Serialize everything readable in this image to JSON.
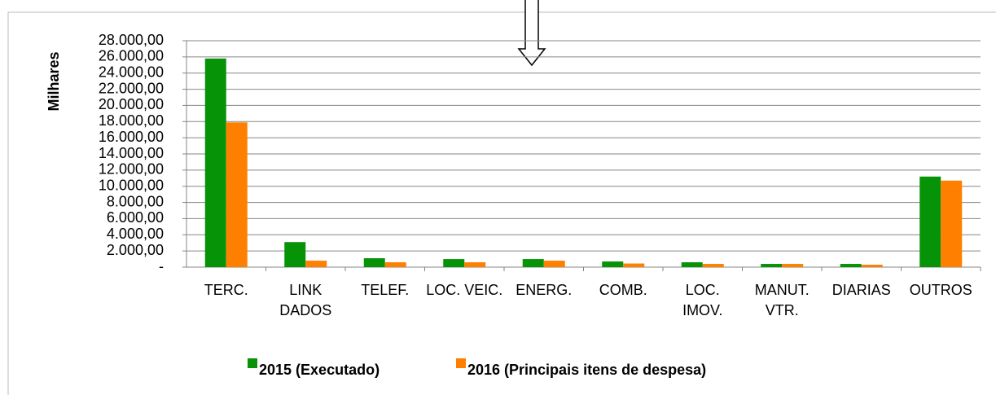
{
  "chart_data": {
    "type": "bar",
    "y_label": "Milhares",
    "categories": [
      "TERC.",
      "LINK DADOS",
      "TELEF.",
      "LOC. VEIC.",
      "ENERG.",
      "COMB.",
      "LOC. IMOV.",
      "MANUT. VTR.",
      "DIARIAS",
      "OUTROS"
    ],
    "series": [
      {
        "name": "2015 (Executado)",
        "color": "#079307",
        "values": [
          25800,
          3100,
          1100,
          1000,
          1000,
          700,
          600,
          400,
          400,
          11200
        ]
      },
      {
        "name": "2016 (Principais itens de despesa)",
        "color": "#ff8000",
        "values": [
          17900,
          800,
          600,
          600,
          800,
          450,
          400,
          400,
          300,
          10700
        ]
      }
    ],
    "ylim": [
      0,
      28000
    ],
    "yticks": [
      {
        "value": 0,
        "label": "-"
      },
      {
        "value": 2000,
        "label": "2.000,00"
      },
      {
        "value": 4000,
        "label": "4.000,00"
      },
      {
        "value": 6000,
        "label": "6.000,00"
      },
      {
        "value": 8000,
        "label": "8.000,00"
      },
      {
        "value": 10000,
        "label": "10.000,00"
      },
      {
        "value": 12000,
        "label": "12.000,00"
      },
      {
        "value": 14000,
        "label": "14.000,00"
      },
      {
        "value": 16000,
        "label": "16.000,00"
      },
      {
        "value": 18000,
        "label": "18.000,00"
      },
      {
        "value": 20000,
        "label": "20.000,00"
      },
      {
        "value": 22000,
        "label": "22.000,00"
      },
      {
        "value": 24000,
        "label": "24.000,00"
      },
      {
        "value": 26000,
        "label": "26.000,00"
      },
      {
        "value": 28000,
        "label": "28.000,00"
      }
    ],
    "grid": true,
    "legend": "bottom"
  }
}
